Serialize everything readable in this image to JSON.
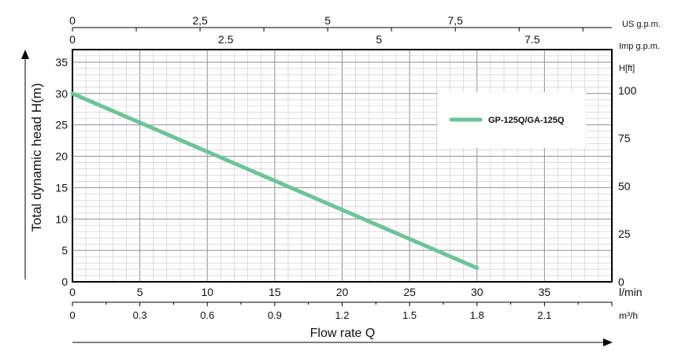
{
  "chart_data": {
    "type": "line",
    "xlabel": "Flow rate Q",
    "ylabel": "Total dynamic head H(m)",
    "x_unit": "l/min",
    "xlim": [
      0,
      40
    ],
    "ylim": [
      0,
      37
    ],
    "grid": true,
    "legend_position": "top-right",
    "x_ticks": [
      0,
      5,
      10,
      15,
      20,
      25,
      30,
      35
    ],
    "y_ticks": [
      0,
      5,
      10,
      15,
      20,
      25,
      30,
      35
    ],
    "series": [
      {
        "name": "GP-125Q/GA-125Q",
        "color": "#6cc49a",
        "x": [
          0,
          30
        ],
        "y": [
          30,
          2.2
        ]
      }
    ],
    "secondary_axes": {
      "m3h": {
        "unit": "m³/h",
        "ticks": [
          "0",
          "0.3",
          "0.6",
          "0.9",
          "1.2",
          "1.5",
          "1.8",
          "2.1"
        ]
      },
      "us_gpm": {
        "unit": "US g.p.m.",
        "ticks": [
          "0",
          "2,5",
          "5",
          "7,5"
        ]
      },
      "imp_gpm": {
        "unit": "Imp g.p.m.",
        "ticks": [
          "0",
          "2.5",
          "5",
          "7.5"
        ]
      },
      "feet": {
        "unit": "H[ft]",
        "ticks": [
          "0",
          "25",
          "50",
          "75",
          "100"
        ]
      }
    }
  }
}
